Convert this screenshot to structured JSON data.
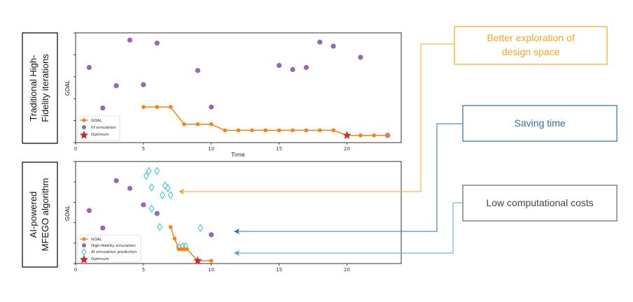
{
  "colors": {
    "goal": "#ff7f0e",
    "hf": "#9467bd",
    "ai": "#17becf",
    "optimum": "#d62728",
    "exploration": "#f5a623",
    "saving": "#2e6da4",
    "lowcost": "#555555"
  },
  "side_labels": {
    "top": [
      "Traditional High-",
      "Fidelity iterations"
    ],
    "bottom": [
      "AI-powered",
      "MFEGO algorithm"
    ]
  },
  "callouts": {
    "exploration": [
      "Better exploration of",
      "design space"
    ],
    "saving": "Saving time",
    "lowcost": "Low computational costs"
  },
  "chart_data": [
    {
      "type": "scatter",
      "xlabel": "Time",
      "ylabel": "GOAL",
      "xlim": [
        0,
        24
      ],
      "ylim": [
        0,
        1
      ],
      "xticks": [
        0,
        5,
        10,
        15,
        20
      ],
      "legend": [
        "GOAL",
        "hf simulation",
        "Optimum"
      ],
      "legend_position": "lower-left",
      "hf_points": [
        {
          "x": 1,
          "y": 0.7
        },
        {
          "x": 2,
          "y": 0.3
        },
        {
          "x": 3,
          "y": 0.52
        },
        {
          "x": 4,
          "y": 0.97
        },
        {
          "x": 5,
          "y": 0.53
        },
        {
          "x": 6,
          "y": 0.94
        },
        {
          "x": 9,
          "y": 0.67
        },
        {
          "x": 10,
          "y": 0.31
        },
        {
          "x": 15,
          "y": 0.72
        },
        {
          "x": 16,
          "y": 0.68
        },
        {
          "x": 17,
          "y": 0.7
        },
        {
          "x": 18,
          "y": 0.95
        },
        {
          "x": 19,
          "y": 0.91
        },
        {
          "x": 21,
          "y": 0.8
        },
        {
          "x": 23,
          "y": 0.03
        }
      ],
      "goal_line": [
        {
          "x": 5,
          "y": 0.31
        },
        {
          "x": 6,
          "y": 0.31
        },
        {
          "x": 7,
          "y": 0.31
        },
        {
          "x": 8,
          "y": 0.14
        },
        {
          "x": 9,
          "y": 0.14
        },
        {
          "x": 10,
          "y": 0.14
        },
        {
          "x": 11,
          "y": 0.08
        },
        {
          "x": 12,
          "y": 0.08
        },
        {
          "x": 13,
          "y": 0.08
        },
        {
          "x": 14,
          "y": 0.08
        },
        {
          "x": 15,
          "y": 0.08
        },
        {
          "x": 16,
          "y": 0.08
        },
        {
          "x": 17,
          "y": 0.08
        },
        {
          "x": 18,
          "y": 0.08
        },
        {
          "x": 19,
          "y": 0.08
        },
        {
          "x": 20,
          "y": 0.03
        },
        {
          "x": 21,
          "y": 0.03
        },
        {
          "x": 22,
          "y": 0.03
        },
        {
          "x": 23,
          "y": 0.03
        }
      ],
      "optimum": {
        "x": 20,
        "y": 0.03
      }
    },
    {
      "type": "scatter",
      "xlabel": "",
      "ylabel": "GOAL",
      "xlim": [
        0,
        24
      ],
      "ylim": [
        0,
        1
      ],
      "xticks": [
        0,
        5,
        10,
        15,
        20
      ],
      "legend": [
        "GOAL",
        "High-fidelity simulation",
        "AI simulation prediction",
        "Optimum"
      ],
      "legend_position": "lower-left",
      "hf_points": [
        {
          "x": 1,
          "y": 0.52
        },
        {
          "x": 2,
          "y": 0.34
        },
        {
          "x": 3,
          "y": 0.83
        },
        {
          "x": 4,
          "y": 0.75
        },
        {
          "x": 5,
          "y": 0.58
        },
        {
          "x": 6,
          "y": 0.49
        },
        {
          "x": 10,
          "y": 0.27
        }
      ],
      "ai_points": [
        {
          "x": 5.2,
          "y": 0.88
        },
        {
          "x": 5.4,
          "y": 0.93
        },
        {
          "x": 5.6,
          "y": 0.76
        },
        {
          "x": 6.0,
          "y": 0.93
        },
        {
          "x": 6.4,
          "y": 0.68
        },
        {
          "x": 6.6,
          "y": 0.78
        },
        {
          "x": 6.8,
          "y": 0.75
        },
        {
          "x": 7.0,
          "y": 0.68
        },
        {
          "x": 5.6,
          "y": 0.54
        },
        {
          "x": 6.2,
          "y": 0.35
        },
        {
          "x": 9.2,
          "y": 0.34
        },
        {
          "x": 7.6,
          "y": 0.14
        },
        {
          "x": 7.9,
          "y": 0.15
        },
        {
          "x": 8.1,
          "y": 0.15
        }
      ],
      "goal_line": [
        {
          "x": 7,
          "y": 0.35
        },
        {
          "x": 7.3,
          "y": 0.23
        },
        {
          "x": 7.6,
          "y": 0.12
        },
        {
          "x": 7.8,
          "y": 0.12
        },
        {
          "x": 8.0,
          "y": 0.12
        },
        {
          "x": 8.2,
          "y": 0.12
        },
        {
          "x": 9,
          "y": 0.0
        },
        {
          "x": 10,
          "y": 0.0
        }
      ],
      "optimum": {
        "x": 9,
        "y": 0.0
      }
    }
  ]
}
